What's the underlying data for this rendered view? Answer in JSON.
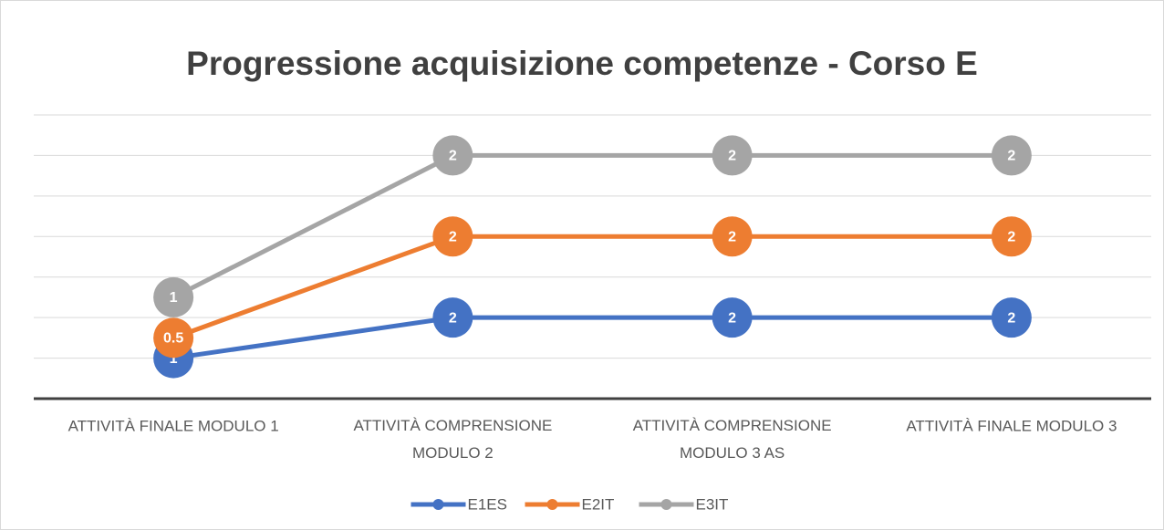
{
  "chart_data": {
    "type": "line",
    "stacked": true,
    "title": "Progressione acquisizione competenze - Corso E",
    "categories": [
      "ATTIVITÀ FINALE MODULO 1",
      "ATTIVITÀ COMPRENSIONE MODULO 2",
      "ATTIVITÀ COMPRENSIONE MODULO 3 AS",
      "ATTIVITÀ FINALE MODULO 3"
    ],
    "series": [
      {
        "name": "E1ES",
        "color": "#4472c4",
        "values": [
          1,
          2,
          2,
          2
        ]
      },
      {
        "name": "E2IT",
        "color": "#ed7d31",
        "values": [
          0.5,
          2,
          2,
          2
        ]
      },
      {
        "name": "E3IT",
        "color": "#a5a5a5",
        "values": [
          1,
          2,
          2,
          2
        ]
      }
    ],
    "ylim": [
      0,
      7
    ],
    "yticks": [
      0,
      1,
      2,
      3,
      4,
      5,
      6,
      7
    ],
    "grid": true,
    "legend": "bottom"
  }
}
